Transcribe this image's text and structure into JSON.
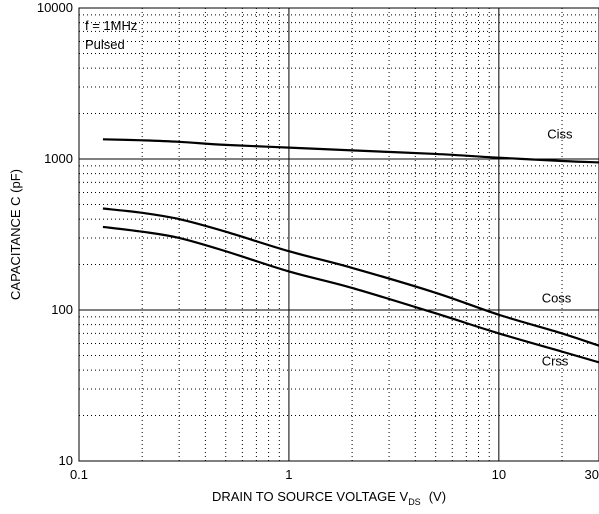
{
  "chart_data": {
    "type": "line",
    "xlabel_main": "DRAIN TO SOURCE VOLTAGE    V",
    "xlabel_sub": "DS",
    "xlabel_unit": "(V)",
    "ylabel": "CAPACITANCE    C  (pF)",
    "x_scale": "log",
    "y_scale": "log",
    "xlim": [
      0.1,
      30
    ],
    "ylim": [
      10,
      10000
    ],
    "x_ticks": [
      {
        "value": 0.1,
        "label": "0.1"
      },
      {
        "value": 1,
        "label": "1"
      },
      {
        "value": 10,
        "label": "10"
      },
      {
        "value": 30,
        "label": "30"
      }
    ],
    "y_ticks": [
      {
        "value": 10,
        "label": "10"
      },
      {
        "value": 100,
        "label": "100"
      },
      {
        "value": 1000,
        "label": "1000"
      },
      {
        "value": 10000,
        "label": "10000"
      }
    ],
    "grid": "major solid, minor dotted",
    "annotations": [
      "f = 1MHz",
      "Pulsed"
    ],
    "series": [
      {
        "name": "Ciss",
        "color": "#000000",
        "points": [
          [
            0.13,
            1350
          ],
          [
            0.2,
            1330
          ],
          [
            0.3,
            1300
          ],
          [
            0.5,
            1240
          ],
          [
            1,
            1190
          ],
          [
            2,
            1140
          ],
          [
            5,
            1080
          ],
          [
            10,
            1020
          ],
          [
            20,
            970
          ],
          [
            30,
            950
          ]
        ]
      },
      {
        "name": "Coss",
        "color": "#000000",
        "points": [
          [
            0.13,
            470
          ],
          [
            0.2,
            440
          ],
          [
            0.3,
            400
          ],
          [
            0.5,
            330
          ],
          [
            1,
            245
          ],
          [
            2,
            190
          ],
          [
            5,
            130
          ],
          [
            10,
            93
          ],
          [
            20,
            70
          ],
          [
            30,
            58
          ]
        ]
      },
      {
        "name": "Crss",
        "color": "#000000",
        "points": [
          [
            0.13,
            355
          ],
          [
            0.2,
            330
          ],
          [
            0.3,
            300
          ],
          [
            0.5,
            245
          ],
          [
            1,
            180
          ],
          [
            2,
            140
          ],
          [
            5,
            95
          ],
          [
            10,
            70
          ],
          [
            20,
            53
          ],
          [
            30,
            45
          ]
        ]
      }
    ]
  }
}
